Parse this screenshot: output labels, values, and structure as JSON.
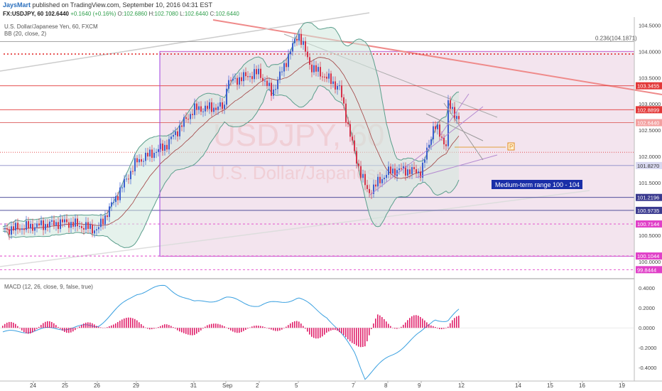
{
  "header": {
    "author": "JaysMart",
    "published": "published on TradingView.com, September 10, 2016 04:31 EST"
  },
  "quote": {
    "symbol": "FX:USDJPY, 60",
    "last": "102.6440",
    "change": "+0.1640 (+0.16%)",
    "o_label": "O:",
    "o": "102.6860",
    "h_label": "H:",
    "h": "102.7080",
    "l_label": "L:",
    "l": "102.6440",
    "c_label": "C:",
    "c": "102.6440"
  },
  "legend": {
    "main_title": "U.S. Dollar/Japanese Yen, 60, FXCM",
    "bb": "BB (20, close, 2)",
    "macd": "MACD (12, 26, close, 9, false, true)"
  },
  "watermark": {
    "symbol": "USDJPY, 60",
    "name": "U.S. Dollar/Japanese Yen"
  },
  "annotations": {
    "range_label": "Medium-term range 100 - 104",
    "fib_label": "0.236(104.1871)",
    "marker": "P"
  },
  "colors": {
    "candle_up": "#3d5fcf",
    "candle_down": "#d6324a",
    "bb_band": "#5b9e8c",
    "bb_fill": "#cfe8dc",
    "zone_fill": "#f3e4ee",
    "resistance": "#e23838",
    "support": "#3a3a8f",
    "magenta": "#e040c8",
    "macd_line": "#3aa0e0",
    "macd_hist": "#e0206a"
  },
  "chart_data": [
    {
      "type": "candlestick",
      "title": "U.S. Dollar/Japanese Yen, 60, FXCM",
      "ylim": [
        99.7,
        104.6
      ],
      "y_ticks": [
        "104.5000",
        "104.0000",
        "103.5000",
        "103.0000",
        "102.5000",
        "102.0000",
        "101.5000",
        "100.5000",
        "100.0000"
      ],
      "x_ticks": [
        "24",
        "25",
        "26",
        "29",
        "31",
        "Sep",
        "2",
        "5",
        "7",
        "8",
        "9",
        "12",
        "14",
        "15",
        "16",
        "19"
      ],
      "close_path": [
        [
          "24",
          100.6
        ],
        [
          "25",
          100.75
        ],
        [
          "26",
          100.6
        ],
        [
          "29",
          101.9
        ],
        [
          "30",
          102.2
        ],
        [
          "31",
          102.9
        ],
        [
          "Sep",
          102.95
        ],
        [
          "1",
          103.4
        ],
        [
          "2",
          103.6
        ],
        [
          "2",
          103.2
        ],
        [
          "5",
          104.35
        ],
        [
          "5",
          103.7
        ],
        [
          "6",
          103.5
        ],
        [
          "6",
          103.3
        ],
        [
          "7",
          102.0
        ],
        [
          "7",
          101.3
        ],
        [
          "8",
          101.7
        ],
        [
          "8",
          101.75
        ],
        [
          "9",
          101.7
        ],
        [
          "9",
          102.6
        ],
        [
          "9",
          102.2
        ],
        [
          "11",
          103.0
        ],
        [
          "12",
          102.64
        ]
      ],
      "price_levels": [
        {
          "label": "103.3455",
          "value": 103.3455,
          "style": "resistance"
        },
        {
          "label": "102.8899",
          "value": 102.8899,
          "style": "resistance"
        },
        {
          "label": "102.6440",
          "value": 102.644,
          "style": "current"
        },
        {
          "label": "101.8270",
          "value": 101.827,
          "style": "neutral"
        },
        {
          "label": "101.2196",
          "value": 101.2196,
          "style": "support"
        },
        {
          "label": "100.9735",
          "value": 100.9735,
          "style": "support"
        },
        {
          "label": "100.7144",
          "value": 100.7144,
          "style": "magenta"
        },
        {
          "label": "100.1044",
          "value": 100.1044,
          "style": "magenta"
        },
        {
          "label": "99.8444",
          "value": 99.8444,
          "style": "magenta"
        }
      ],
      "fib_level": {
        "label": "0.236(104.1871)",
        "value": 104.1871
      }
    },
    {
      "type": "line",
      "title": "MACD (12, 26, close, 9, false, true)",
      "ylim": [
        -0.52,
        0.48
      ],
      "y_ticks": [
        "0.4000",
        "0.2000",
        "0.0000",
        "-0.2000",
        "-0.4000"
      ],
      "macd_line": [
        [
          "24",
          -0.05
        ],
        [
          "25",
          0.0
        ],
        [
          "26",
          0.02
        ],
        [
          "29",
          0.35
        ],
        [
          "30",
          0.42
        ],
        [
          "31",
          0.25
        ],
        [
          "Sep",
          0.3
        ],
        [
          "2",
          0.22
        ],
        [
          "5",
          0.3
        ],
        [
          "6",
          0.12
        ],
        [
          "7",
          -0.25
        ],
        [
          "7",
          -0.5
        ],
        [
          "8",
          -0.3
        ],
        [
          "9",
          -0.05
        ],
        [
          "10",
          0.1
        ],
        [
          "11",
          0.06
        ],
        [
          "12",
          0.2
        ]
      ]
    }
  ]
}
